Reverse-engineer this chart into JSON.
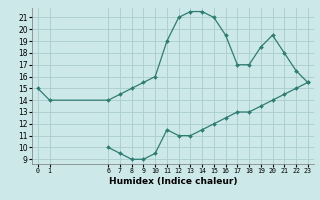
{
  "xlabel": "Humidex (Indice chaleur)",
  "line1_x": [
    0,
    1,
    6,
    7,
    8,
    9,
    10,
    11,
    12,
    13,
    14,
    15,
    16,
    17,
    18,
    19,
    20,
    21,
    22,
    23
  ],
  "line1_y": [
    15,
    14,
    14,
    14.5,
    15,
    15.5,
    16,
    19,
    21,
    21.5,
    21.5,
    21,
    19.5,
    17,
    17,
    18.5,
    19.5,
    18,
    16.5,
    15.5
  ],
  "line2_x": [
    6,
    7,
    8,
    9,
    10,
    11,
    12,
    13,
    14,
    15,
    16,
    17,
    18,
    19,
    20,
    21,
    22,
    23
  ],
  "line2_y": [
    10,
    9.5,
    9,
    9,
    9.5,
    11.5,
    11,
    11,
    11.5,
    12,
    12.5,
    13,
    13,
    13.5,
    14,
    14.5,
    15,
    15.5
  ],
  "line_color": "#2e7d72",
  "bg_color": "#cce8e8",
  "grid_color": "#aacccc",
  "ylim": [
    8.6,
    21.8
  ],
  "xlim": [
    -0.5,
    23.5
  ],
  "yticks": [
    9,
    10,
    11,
    12,
    13,
    14,
    15,
    16,
    17,
    18,
    19,
    20,
    21
  ],
  "xticks": [
    0,
    1,
    6,
    7,
    8,
    9,
    10,
    11,
    12,
    13,
    14,
    15,
    16,
    17,
    18,
    19,
    20,
    21,
    22,
    23
  ],
  "marker": "D",
  "marker_size": 2.0,
  "linewidth": 0.9
}
